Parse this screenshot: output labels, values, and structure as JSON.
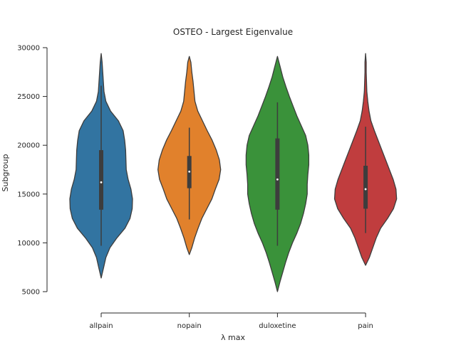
{
  "chart_data": {
    "type": "violin",
    "title": "OSTEO - Largest Eigenvalue",
    "xlabel": "λ  max",
    "ylabel": "Subgroup",
    "ylim": [
      5000,
      30000
    ],
    "yticks": [
      5000,
      10000,
      15000,
      20000,
      25000,
      30000
    ],
    "grid": false,
    "categories": [
      "allpain",
      "nopain",
      "duloxetine",
      "pain"
    ],
    "colors": [
      "#3274a1",
      "#e1812c",
      "#3a923a",
      "#c03d3e"
    ],
    "violins": [
      {
        "category": "allpain",
        "min": 6400,
        "max": 29400,
        "q1": 13400,
        "median": 16200,
        "q3": 19500,
        "whisker_low": 9700,
        "whisker_high": 26100,
        "profile": [
          [
            6400,
            0.0
          ],
          [
            7500,
            0.08
          ],
          [
            8500,
            0.15
          ],
          [
            9500,
            0.28
          ],
          [
            10500,
            0.5
          ],
          [
            11500,
            0.76
          ],
          [
            12500,
            0.92
          ],
          [
            13500,
            0.99
          ],
          [
            14500,
            1.0
          ],
          [
            15500,
            0.95
          ],
          [
            16500,
            0.86
          ],
          [
            17500,
            0.8
          ],
          [
            18500,
            0.79
          ],
          [
            19500,
            0.78
          ],
          [
            20500,
            0.75
          ],
          [
            21500,
            0.7
          ],
          [
            22500,
            0.55
          ],
          [
            23500,
            0.3
          ],
          [
            24500,
            0.15
          ],
          [
            25500,
            0.09
          ],
          [
            26500,
            0.07
          ],
          [
            27500,
            0.05
          ],
          [
            28500,
            0.03
          ],
          [
            29400,
            0.0
          ]
        ]
      },
      {
        "category": "nopain",
        "min": 8800,
        "max": 29100,
        "q1": 15600,
        "median": 17300,
        "q3": 18900,
        "whisker_low": 12400,
        "whisker_high": 21800,
        "profile": [
          [
            8800,
            0.0
          ],
          [
            9500,
            0.08
          ],
          [
            10500,
            0.17
          ],
          [
            11500,
            0.28
          ],
          [
            12500,
            0.4
          ],
          [
            13500,
            0.56
          ],
          [
            14500,
            0.72
          ],
          [
            15500,
            0.83
          ],
          [
            16500,
            0.95
          ],
          [
            17500,
            1.0
          ],
          [
            18500,
            0.96
          ],
          [
            19500,
            0.86
          ],
          [
            20500,
            0.73
          ],
          [
            21500,
            0.57
          ],
          [
            22500,
            0.42
          ],
          [
            23500,
            0.27
          ],
          [
            24500,
            0.18
          ],
          [
            25500,
            0.15
          ],
          [
            26500,
            0.12
          ],
          [
            27500,
            0.08
          ],
          [
            28500,
            0.05
          ],
          [
            29100,
            0.0
          ]
        ]
      },
      {
        "category": "duloxetine",
        "min": 5000,
        "max": 29100,
        "q1": 13400,
        "median": 16500,
        "q3": 20700,
        "whisker_low": 9700,
        "whisker_high": 24400,
        "profile": [
          [
            5000,
            0.0
          ],
          [
            6000,
            0.08
          ],
          [
            7000,
            0.17
          ],
          [
            8000,
            0.26
          ],
          [
            9000,
            0.36
          ],
          [
            10000,
            0.48
          ],
          [
            11000,
            0.62
          ],
          [
            12000,
            0.74
          ],
          [
            13000,
            0.83
          ],
          [
            14000,
            0.9
          ],
          [
            15000,
            0.95
          ],
          [
            16000,
            0.95
          ],
          [
            17000,
            0.97
          ],
          [
            18000,
            1.0
          ],
          [
            19000,
            1.0
          ],
          [
            20000,
            0.97
          ],
          [
            21000,
            0.9
          ],
          [
            22000,
            0.76
          ],
          [
            23000,
            0.62
          ],
          [
            24000,
            0.5
          ],
          [
            25000,
            0.38
          ],
          [
            26000,
            0.27
          ],
          [
            27000,
            0.17
          ],
          [
            28000,
            0.09
          ],
          [
            29100,
            0.0
          ]
        ]
      },
      {
        "category": "pain",
        "min": 7700,
        "max": 29400,
        "q1": 13500,
        "median": 15500,
        "q3": 17900,
        "whisker_low": 11000,
        "whisker_high": 21900,
        "profile": [
          [
            7700,
            0.0
          ],
          [
            8500,
            0.12
          ],
          [
            9500,
            0.23
          ],
          [
            10500,
            0.34
          ],
          [
            11500,
            0.48
          ],
          [
            12500,
            0.7
          ],
          [
            13500,
            0.89
          ],
          [
            14500,
            0.99
          ],
          [
            15500,
            0.97
          ],
          [
            16500,
            0.88
          ],
          [
            17500,
            0.76
          ],
          [
            18500,
            0.64
          ],
          [
            19500,
            0.52
          ],
          [
            20500,
            0.4
          ],
          [
            21500,
            0.28
          ],
          [
            22500,
            0.17
          ],
          [
            23500,
            0.11
          ],
          [
            24500,
            0.07
          ],
          [
            25500,
            0.04
          ],
          [
            26500,
            0.03
          ],
          [
            27500,
            0.02
          ],
          [
            28500,
            0.02
          ],
          [
            29400,
            0.0
          ]
        ]
      }
    ]
  }
}
